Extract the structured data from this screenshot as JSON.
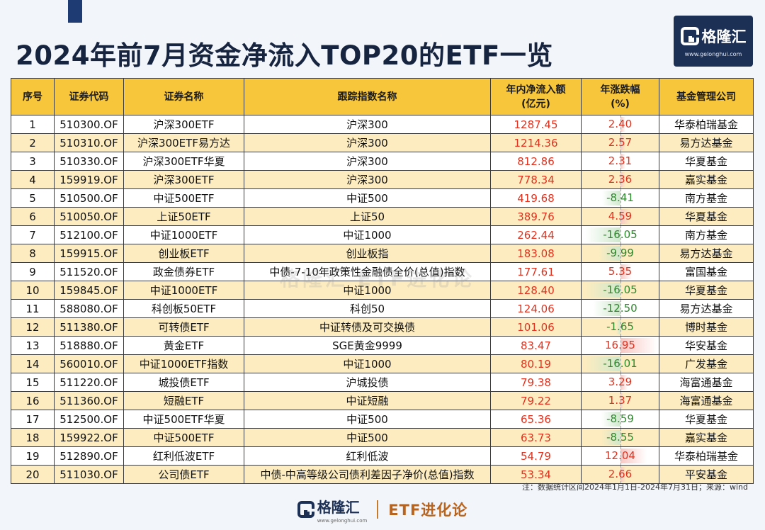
{
  "title": "2024年前7月资金净流入TOP20的ETF一览",
  "logo": {
    "name": "格隆汇",
    "url": "www.gelonghui.com"
  },
  "headers": [
    "序号",
    "证券代码",
    "证券名称",
    "跟踪指数名称",
    "年内净流入额\n(亿元)",
    "年涨跌幅\n(%)",
    "基金管理公司"
  ],
  "rows": [
    {
      "no": "1",
      "code": "510300.OF",
      "name": "沪深300ETF",
      "index": "沪深300",
      "flow": "1287.45",
      "chg": "2.40",
      "chg_value": 2.4,
      "mgr": "华泰柏瑞基金"
    },
    {
      "no": "2",
      "code": "510310.OF",
      "name": "沪深300ETF易方达",
      "index": "沪深300",
      "flow": "1214.36",
      "chg": "2.57",
      "chg_value": 2.57,
      "mgr": "易方达基金"
    },
    {
      "no": "3",
      "code": "510330.OF",
      "name": "沪深300ETF华夏",
      "index": "沪深300",
      "flow": "812.86",
      "chg": "2.31",
      "chg_value": 2.31,
      "mgr": "华夏基金"
    },
    {
      "no": "4",
      "code": "159919.OF",
      "name": "沪深300ETF",
      "index": "沪深300",
      "flow": "778.34",
      "chg": "2.36",
      "chg_value": 2.36,
      "mgr": "嘉实基金"
    },
    {
      "no": "5",
      "code": "510500.OF",
      "name": "中证500ETF",
      "index": "中证500",
      "flow": "419.68",
      "chg": "-8.41",
      "chg_value": -8.41,
      "mgr": "南方基金"
    },
    {
      "no": "6",
      "code": "510050.OF",
      "name": "上证50ETF",
      "index": "上证50",
      "flow": "389.76",
      "chg": "4.59",
      "chg_value": 4.59,
      "mgr": "华夏基金"
    },
    {
      "no": "7",
      "code": "512100.OF",
      "name": "中证1000ETF",
      "index": "中证1000",
      "flow": "262.44",
      "chg": "-16.05",
      "chg_value": -16.05,
      "mgr": "南方基金"
    },
    {
      "no": "8",
      "code": "159915.OF",
      "name": "创业板ETF",
      "index": "创业板指",
      "flow": "183.08",
      "chg": "-9.99",
      "chg_value": -9.99,
      "mgr": "易方达基金"
    },
    {
      "no": "9",
      "code": "511520.OF",
      "name": "政金债券ETF",
      "index": "中债-7-10年政策性金融债全价(总值)指数",
      "flow": "177.61",
      "chg": "5.35",
      "chg_value": 5.35,
      "mgr": "富国基金"
    },
    {
      "no": "10",
      "code": "159845.OF",
      "name": "中证1000ETF",
      "index": "中证1000",
      "flow": "128.40",
      "chg": "-16.05",
      "chg_value": -16.05,
      "mgr": "华夏基金"
    },
    {
      "no": "11",
      "code": "588080.OF",
      "name": "科创板50ETF",
      "index": "科创50",
      "flow": "124.06",
      "chg": "-12.50",
      "chg_value": -12.5,
      "mgr": "易方达基金"
    },
    {
      "no": "12",
      "code": "511380.OF",
      "name": "可转债ETF",
      "index": "中证转债及可交换债",
      "flow": "101.06",
      "chg": "-1.65",
      "chg_value": -1.65,
      "mgr": "博时基金"
    },
    {
      "no": "13",
      "code": "518880.OF",
      "name": "黄金ETF",
      "index": "SGE黄金9999",
      "flow": "83.47",
      "chg": "16.95",
      "chg_value": 16.95,
      "mgr": "华安基金"
    },
    {
      "no": "14",
      "code": "560010.OF",
      "name": "中证1000ETF指数",
      "index": "中证1000",
      "flow": "80.19",
      "chg": "-16.01",
      "chg_value": -16.01,
      "mgr": "广发基金"
    },
    {
      "no": "15",
      "code": "511220.OF",
      "name": "城投债ETF",
      "index": "沪城投债",
      "flow": "79.38",
      "chg": "3.29",
      "chg_value": 3.29,
      "mgr": "海富通基金"
    },
    {
      "no": "16",
      "code": "511360.OF",
      "name": "短融ETF",
      "index": "中证短融",
      "flow": "79.22",
      "chg": "1.37",
      "chg_value": 1.37,
      "mgr": "海富通基金"
    },
    {
      "no": "17",
      "code": "512500.OF",
      "name": "中证500ETF华夏",
      "index": "中证500",
      "flow": "65.36",
      "chg": "-8.59",
      "chg_value": -8.59,
      "mgr": "华夏基金"
    },
    {
      "no": "18",
      "code": "159922.OF",
      "name": "中证500ETF",
      "index": "中证500",
      "flow": "63.73",
      "chg": "-8.55",
      "chg_value": -8.55,
      "mgr": "嘉实基金"
    },
    {
      "no": "19",
      "code": "512890.OF",
      "name": "红利低波ETF",
      "index": "红利低波",
      "flow": "54.79",
      "chg": "12.04",
      "chg_value": 12.04,
      "mgr": "华泰柏瑞基金"
    },
    {
      "no": "20",
      "code": "511030.OF",
      "name": "公司债ETF",
      "index": "中债-中高等级公司债利差因子净价(总值)指数",
      "flow": "53.34",
      "chg": "2.66",
      "chg_value": 2.66,
      "mgr": "平安基金"
    }
  ],
  "note": "注：数据统计区间2024年1月1日-2024年7月31日；来源：wind",
  "watermark": "格隆汇  ETF进化论",
  "footer": {
    "brand": "格隆汇",
    "url": "www.gelonghui.com",
    "tagline": "ETF进化论"
  },
  "colors": {
    "header_bg": "#f7c63a",
    "stripe": "#fdecc0",
    "positive": "#e0321e",
    "negative": "#2c8a2c",
    "navy": "#1c2f55"
  }
}
